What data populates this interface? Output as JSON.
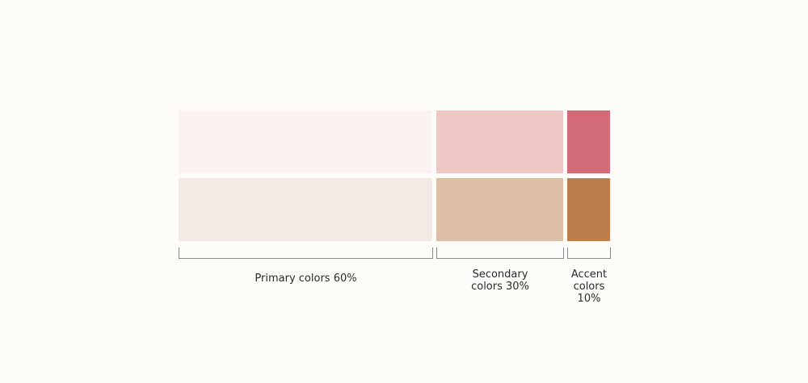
{
  "colors": {
    "background": "#fdfcf8",
    "primary_top": "#fcf2ef",
    "primary_bottom": "#f3eae3",
    "secondary_top": "#edc8c5",
    "secondary_bottom": "#dfbea6",
    "accent_top": "#d26b77",
    "accent_bottom": "#bd7c4c",
    "bracket": "#8a8a8a"
  },
  "groups": {
    "primary": {
      "label_lines": [
        "Primary colors 60%"
      ]
    },
    "secondary": {
      "label_lines": [
        "Secondary",
        "colors 30%"
      ]
    },
    "accent": {
      "label_lines": [
        "Accent",
        "colors",
        "10%"
      ]
    }
  }
}
